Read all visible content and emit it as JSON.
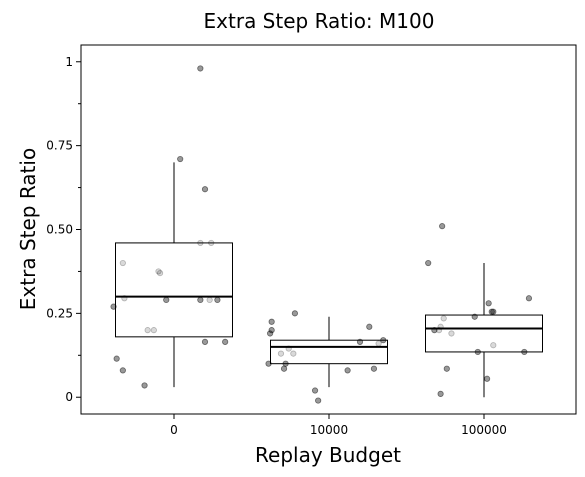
{
  "chart_data": {
    "type": "box",
    "title": "Extra Step Ratio: M100",
    "xlabel": "Replay Budget",
    "ylabel": "Extra Step Ratio",
    "categories": [
      "0",
      "10000",
      "100000"
    ],
    "ylim": [
      -0.05,
      1.05
    ],
    "yticks": [
      0,
      0.25,
      0.5,
      0.75,
      1
    ],
    "ytick_labels": [
      "0",
      "0.25",
      "0.50",
      "0.75",
      "1"
    ],
    "yminor_ticks": [
      0.125,
      0.375,
      0.625,
      0.875
    ],
    "grid": false,
    "boxes": [
      {
        "category": "0",
        "whisker_low": 0.03,
        "q1": 0.18,
        "median": 0.3,
        "q3": 0.46,
        "whisker_high": 0.7
      },
      {
        "category": "10000",
        "whisker_low": 0.03,
        "q1": 0.1,
        "median": 0.15,
        "q3": 0.17,
        "whisker_high": 0.24
      },
      {
        "category": "100000",
        "whisker_low": 0.0,
        "q1": 0.135,
        "median": 0.205,
        "q3": 0.245,
        "whisker_high": 0.4
      }
    ],
    "points": [
      {
        "x": -0.39,
        "y": 0.27,
        "alpha": 0.4
      },
      {
        "x": -0.37,
        "y": 0.115,
        "alpha": 0.4
      },
      {
        "x": -0.33,
        "y": 0.08,
        "alpha": 0.4
      },
      {
        "x": -0.33,
        "y": 0.4,
        "alpha": 0.15
      },
      {
        "x": -0.32,
        "y": 0.295,
        "alpha": 0.15
      },
      {
        "x": -0.19,
        "y": 0.035,
        "alpha": 0.4
      },
      {
        "x": -0.17,
        "y": 0.2,
        "alpha": 0.15
      },
      {
        "x": -0.13,
        "y": 0.2,
        "alpha": 0.15
      },
      {
        "x": -0.1,
        "y": 0.375,
        "alpha": 0.15
      },
      {
        "x": -0.09,
        "y": 0.37,
        "alpha": 0.15
      },
      {
        "x": -0.05,
        "y": 0.29,
        "alpha": 0.4
      },
      {
        "x": 0.04,
        "y": 0.71,
        "alpha": 0.4
      },
      {
        "x": 0.17,
        "y": 0.98,
        "alpha": 0.4
      },
      {
        "x": 0.2,
        "y": 0.62,
        "alpha": 0.4
      },
      {
        "x": 0.17,
        "y": 0.29,
        "alpha": 0.4
      },
      {
        "x": 0.17,
        "y": 0.46,
        "alpha": 0.15
      },
      {
        "x": 0.2,
        "y": 0.165,
        "alpha": 0.4
      },
      {
        "x": 0.23,
        "y": 0.29,
        "alpha": 0.15
      },
      {
        "x": 0.24,
        "y": 0.46,
        "alpha": 0.15
      },
      {
        "x": 0.28,
        "y": 0.29,
        "alpha": 0.4
      },
      {
        "x": 0.33,
        "y": 0.165,
        "alpha": 0.4
      },
      {
        "x": 0.61,
        "y": 0.1,
        "alpha": 0.4
      },
      {
        "x": 0.62,
        "y": 0.19,
        "alpha": 0.4
      },
      {
        "x": 0.63,
        "y": 0.2,
        "alpha": 0.4
      },
      {
        "x": 0.63,
        "y": 0.225,
        "alpha": 0.4
      },
      {
        "x": 0.69,
        "y": 0.13,
        "alpha": 0.15
      },
      {
        "x": 0.71,
        "y": 0.085,
        "alpha": 0.4
      },
      {
        "x": 0.72,
        "y": 0.1,
        "alpha": 0.4
      },
      {
        "x": 0.74,
        "y": 0.145,
        "alpha": 0.15
      },
      {
        "x": 0.77,
        "y": 0.13,
        "alpha": 0.15
      },
      {
        "x": 0.78,
        "y": 0.25,
        "alpha": 0.4
      },
      {
        "x": 0.91,
        "y": 0.02,
        "alpha": 0.4
      },
      {
        "x": 0.93,
        "y": -0.01,
        "alpha": 0.4
      },
      {
        "x": 1.12,
        "y": 0.08,
        "alpha": 0.4
      },
      {
        "x": 1.2,
        "y": 0.165,
        "alpha": 0.4
      },
      {
        "x": 1.26,
        "y": 0.21,
        "alpha": 0.4
      },
      {
        "x": 1.29,
        "y": 0.085,
        "alpha": 0.4
      },
      {
        "x": 1.32,
        "y": 0.16,
        "alpha": 0.15
      },
      {
        "x": 1.35,
        "y": 0.17,
        "alpha": 0.4
      },
      {
        "x": 1.64,
        "y": 0.4,
        "alpha": 0.4
      },
      {
        "x": 1.68,
        "y": 0.2,
        "alpha": 0.4
      },
      {
        "x": 1.71,
        "y": 0.2,
        "alpha": 0.15
      },
      {
        "x": 1.72,
        "y": 0.21,
        "alpha": 0.15
      },
      {
        "x": 1.72,
        "y": 0.01,
        "alpha": 0.4
      },
      {
        "x": 1.73,
        "y": 0.51,
        "alpha": 0.4
      },
      {
        "x": 1.76,
        "y": 0.085,
        "alpha": 0.4
      },
      {
        "x": 1.79,
        "y": 0.19,
        "alpha": 0.15
      },
      {
        "x": 1.74,
        "y": 0.235,
        "alpha": 0.15
      },
      {
        "x": 1.94,
        "y": 0.24,
        "alpha": 0.4
      },
      {
        "x": 1.96,
        "y": 0.135,
        "alpha": 0.4
      },
      {
        "x": 2.02,
        "y": 0.055,
        "alpha": 0.4
      },
      {
        "x": 2.03,
        "y": 0.28,
        "alpha": 0.4
      },
      {
        "x": 2.05,
        "y": 0.255,
        "alpha": 0.4
      },
      {
        "x": 2.06,
        "y": 0.255,
        "alpha": 0.4
      },
      {
        "x": 2.06,
        "y": 0.155,
        "alpha": 0.15
      },
      {
        "x": 2.26,
        "y": 0.135,
        "alpha": 0.4
      },
      {
        "x": 2.29,
        "y": 0.295,
        "alpha": 0.4
      }
    ]
  }
}
